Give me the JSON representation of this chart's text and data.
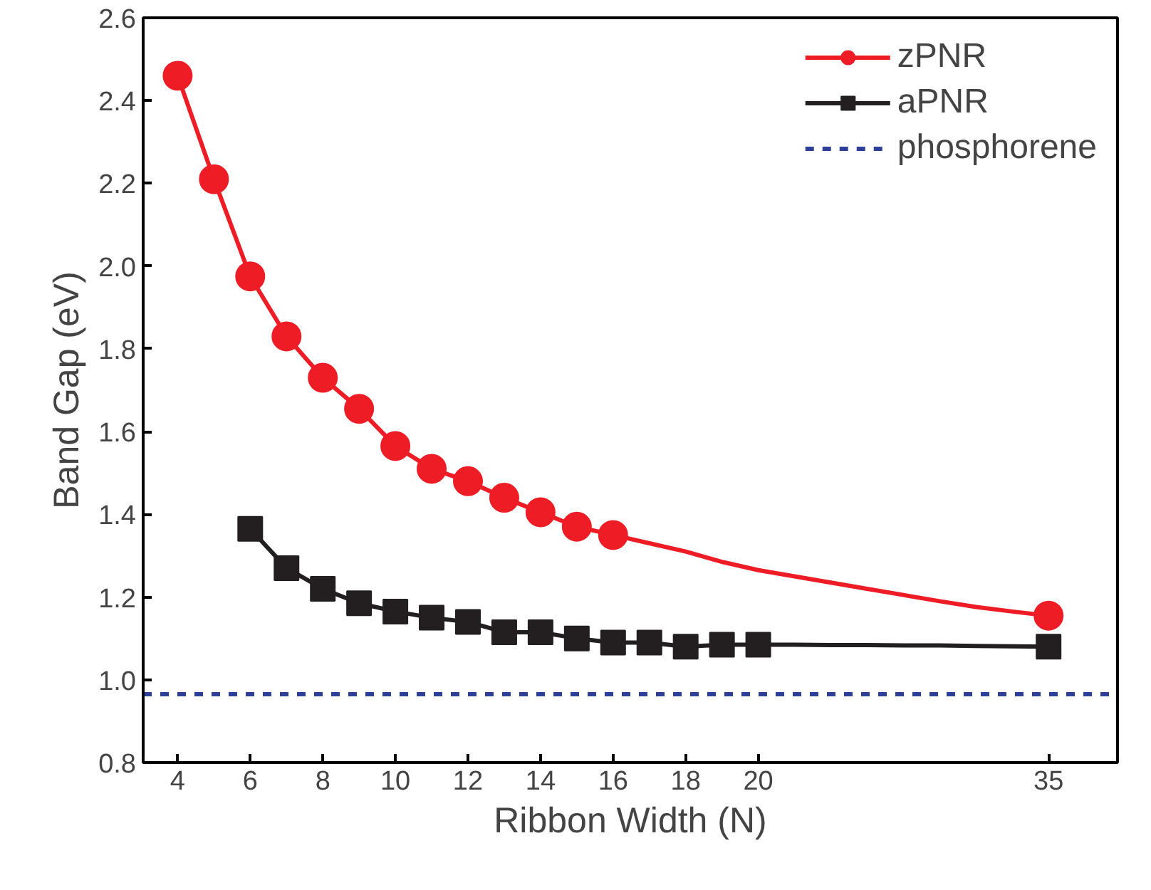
{
  "chart_data": {
    "type": "line",
    "xlabel": "Ribbon Width (N)",
    "ylabel": "Band Gap (eV)",
    "categories": [
      "4",
      null,
      "6",
      null,
      "8",
      null,
      "10",
      null,
      "12",
      null,
      "14",
      null,
      "16",
      null,
      "18",
      null,
      "20",
      null,
      null,
      null,
      null,
      null,
      null,
      null,
      "35"
    ],
    "ylim": [
      0.8,
      2.6
    ],
    "yticks": [
      0.8,
      {
        "value": 1.0,
        "label": "1.0"
      },
      1.2,
      1.4,
      1.6,
      1.8,
      {
        "value": 2.0,
        "label": "2.0"
      },
      2.2,
      2.4,
      2.6
    ],
    "legend": "top right",
    "grid": false,
    "series": [
      {
        "name": "zPNR",
        "type": "scatter",
        "marker": "circle",
        "color": "#ee1c25",
        "values": [
          2.46,
          2.21,
          1.975,
          1.83,
          1.73,
          1.655,
          1.565,
          1.51,
          1.48,
          1.44,
          1.405,
          1.37,
          1.35,
          null,
          null,
          null,
          null,
          null,
          null,
          null,
          null,
          null,
          null,
          null,
          1.155
        ]
      },
      {
        "color": "#ee1c25",
        "values": [
          2.46,
          2.21,
          1.975,
          1.83,
          1.73,
          1.655,
          1.565,
          1.51,
          1.48,
          1.44,
          1.405,
          1.37,
          1.35,
          1.33,
          1.31,
          1.285,
          1.265,
          1.25,
          1.235,
          1.22,
          1.205,
          1.19,
          1.176,
          1.165,
          1.155
        ]
      },
      {
        "name": "aPNR",
        "type": "scatter",
        "marker": "square",
        "color": "#231f20",
        "values": [
          null,
          null,
          1.365,
          1.27,
          1.22,
          1.185,
          1.165,
          1.15,
          1.14,
          1.115,
          1.115,
          1.1,
          1.09,
          1.09,
          1.08,
          1.085,
          1.085,
          null,
          null,
          null,
          null,
          null,
          null,
          null,
          1.08
        ]
      },
      {
        "color": "#231f20",
        "values": [
          null,
          null,
          1.365,
          1.27,
          1.22,
          1.185,
          1.165,
          1.15,
          1.14,
          1.115,
          1.115,
          1.1,
          1.09,
          1.09,
          1.08,
          1.085,
          1.085,
          1.085,
          1.084,
          1.084,
          1.083,
          1.083,
          1.082,
          1.081,
          1.08
        ]
      }
    ],
    "ref_lines": [
      {
        "axis": "y",
        "value": 0.965,
        "label": "phosphorene",
        "color": "#2e3f98",
        "line_style": "dashed"
      }
    ]
  }
}
